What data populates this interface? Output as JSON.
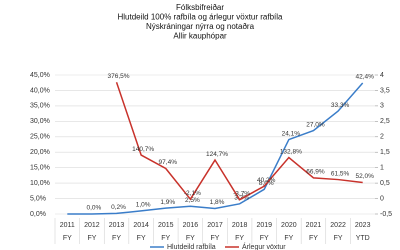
{
  "chart_data": {
    "type": "line",
    "title": [
      "Fólksbifreiðar",
      "Hlutdeild 100% rafbíla og árlegur vöxtur rafbíla",
      "Nýskráningar nýrra og notaðra",
      "Allir kauphópar"
    ],
    "categories": [
      "2011",
      "2012",
      "2013",
      "2014",
      "2015",
      "2016",
      "2017",
      "2018",
      "2019",
      "2020",
      "2021",
      "2022",
      "2023"
    ],
    "category_sublabels": [
      "FY",
      "FY",
      "FY",
      "FY",
      "FY",
      "FY",
      "FY",
      "FY",
      "FY",
      "FY",
      "FY",
      "FY",
      "YTD"
    ],
    "series": [
      {
        "name": "Hlutdeild rafbíla",
        "color": "#3a7dc9",
        "values": [
          0.0,
          0.0,
          0.2,
          1.0,
          1.9,
          2.5,
          1.8,
          3.3,
          8.0,
          24.1,
          27.0,
          33.3,
          42.4
        ],
        "value_labels": [
          null,
          "0,0%",
          "0,2%",
          "1,0%",
          "1,9%",
          "2,5%",
          "1,8%",
          "3,3%",
          "8,0%",
          "24,1%",
          "27,0%",
          "33,3%",
          "42,4%"
        ]
      },
      {
        "name": "Árlegur vöxtur",
        "color": "#c8322b",
        "axis": "y2",
        "values": [
          null,
          null,
          3.765,
          1.407,
          0.974,
          -0.021,
          1.247,
          -0.037,
          0.402,
          1.328,
          0.669,
          0.615,
          0.52
        ],
        "value_labels": [
          null,
          null,
          "376,5%",
          "140,7%",
          "97,4%",
          "-2,1%",
          "124,7%",
          "-3,7%",
          "40,2%",
          "132,8%",
          "66,9%",
          "61,5%",
          "52,0%"
        ]
      }
    ],
    "ylim": [
      0,
      45
    ],
    "yticks": [
      {
        "value": 0,
        "label": "0,0%"
      },
      {
        "value": 5,
        "label": "5,0%"
      },
      {
        "value": 10,
        "label": "10,0%"
      },
      {
        "value": 15,
        "label": "15,0%"
      },
      {
        "value": 20,
        "label": "20,0%"
      },
      {
        "value": 25,
        "label": "25,0%"
      },
      {
        "value": 30,
        "label": "30,0%"
      },
      {
        "value": 35,
        "label": "35,0%"
      },
      {
        "value": 40,
        "label": "40,0%"
      },
      {
        "value": 45,
        "label": "45,0%"
      }
    ],
    "y2lim": [
      -0.5,
      4
    ],
    "y2ticks": [
      {
        "value": -0.5,
        "label": "-0,5"
      },
      0,
      {
        "value": 0.5,
        "label": "0,5"
      },
      1,
      {
        "value": 1.5,
        "label": "1,5"
      },
      2,
      {
        "value": 2.5,
        "label": "2,5"
      },
      3,
      {
        "value": 3.5,
        "label": "3,5"
      },
      4
    ],
    "grid": true
  }
}
